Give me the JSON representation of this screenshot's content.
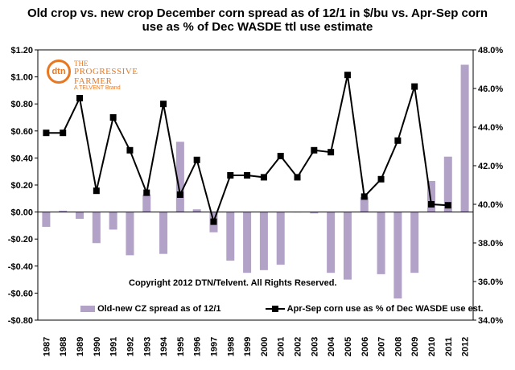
{
  "header": {
    "title_line1": "Old crop vs. new crop December corn spread as of 12/1 in $/bu vs. Apr-Sep corn",
    "title_line2": "use as % of Dec WASDE ttl use estimate"
  },
  "logo": {
    "mark": "dtn",
    "line1": "THE",
    "line2": "PROGRESSIVE",
    "line3": "FARMER",
    "line4": "A TELVENT Brand"
  },
  "copyright": "Copyright 2012 DTN/Telvent. All Rights Reserved.",
  "colors": {
    "bar": "#b3a2c7",
    "line": "#000000"
  },
  "chart_data": {
    "type": "bar",
    "categories": [
      "1987",
      "1988",
      "1989",
      "1990",
      "1991",
      "1992",
      "1993",
      "1994",
      "1995",
      "1996",
      "1997",
      "1998",
      "1999",
      "2000",
      "2001",
      "2002",
      "2003",
      "2004",
      "2005",
      "2006",
      "2007",
      "2008",
      "2009",
      "2010",
      "2011",
      "2012"
    ],
    "series": [
      {
        "name": "Old-new CZ spread as of 12/1",
        "type": "bar",
        "axis": "left",
        "values": [
          -0.11,
          0.01,
          -0.05,
          -0.23,
          -0.13,
          -0.32,
          0.13,
          -0.31,
          0.52,
          0.02,
          -0.15,
          -0.36,
          -0.45,
          -0.43,
          -0.39,
          0.0,
          -0.01,
          -0.45,
          -0.5,
          0.11,
          -0.46,
          -0.64,
          -0.45,
          0.23,
          0.41,
          1.09
        ]
      },
      {
        "name": "Apr-Sep corn use as % of Dec WASDE use est.",
        "type": "line",
        "axis": "right",
        "values": [
          43.7,
          43.7,
          45.5,
          40.7,
          44.5,
          42.8,
          40.6,
          45.2,
          40.5,
          42.3,
          39.1,
          41.5,
          41.5,
          41.4,
          42.5,
          41.4,
          42.8,
          42.7,
          46.7,
          40.4,
          41.3,
          43.3,
          46.1,
          40.0,
          39.95,
          null
        ]
      }
    ],
    "y_left": {
      "min": -0.8,
      "max": 1.2,
      "step": 0.2,
      "format": "$"
    },
    "y_right": {
      "min": 34.0,
      "max": 48.0,
      "step": 2.0,
      "format": "%"
    },
    "legend": "bottom"
  }
}
